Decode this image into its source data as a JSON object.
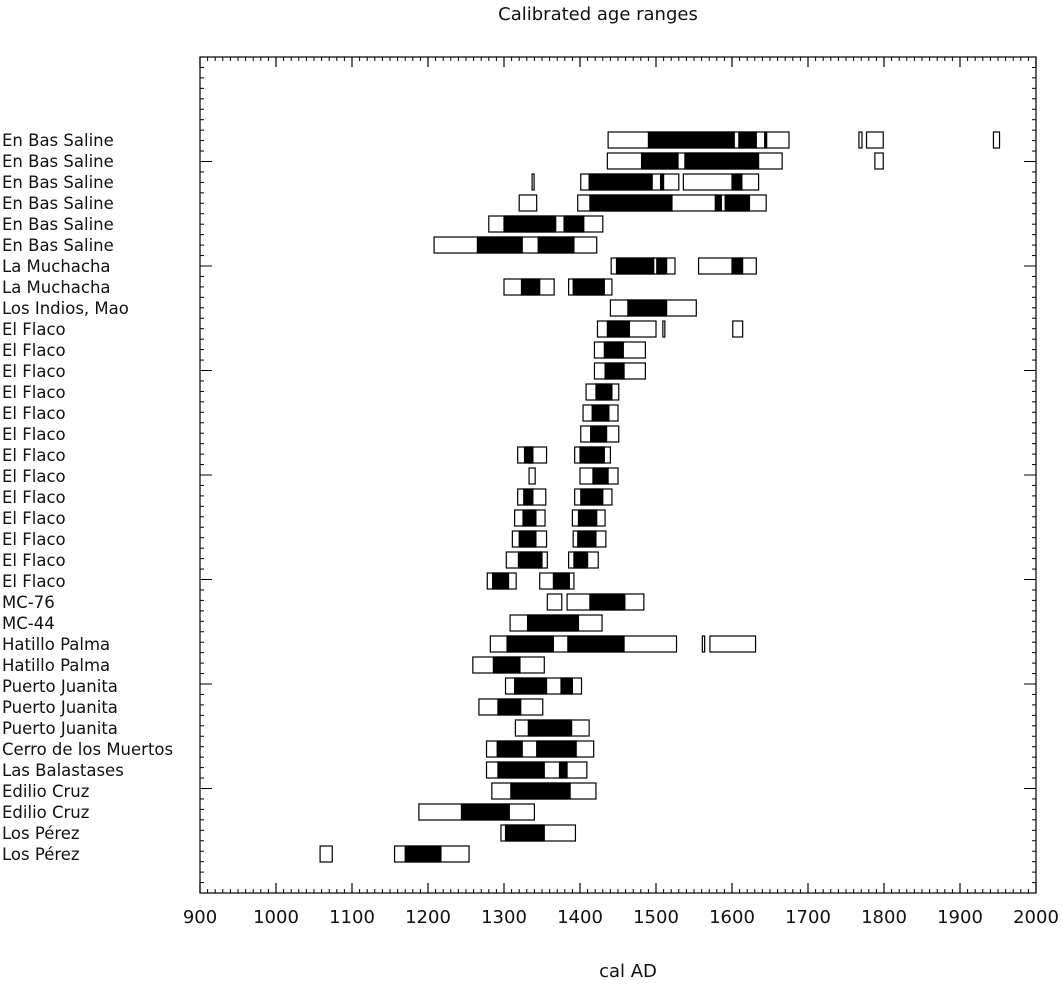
{
  "chart_data": {
    "type": "bar",
    "title": "Calibrated age ranges",
    "xlabel": "cal AD",
    "ylabel": "",
    "xlim": [
      900,
      2000
    ],
    "xticks": [
      900,
      1000,
      1100,
      1200,
      1300,
      1400,
      1500,
      1600,
      1700,
      1800,
      1900,
      2000
    ],
    "grid": false,
    "legend": "none",
    "colors": {
      "sigma1_fill": "#000000",
      "sigma2_fill": "#ffffff",
      "stroke": "#000000"
    },
    "rows": [
      {
        "label": "En Bas Saline",
        "sigma2": [
          [
            1437,
            1675
          ],
          [
            1767,
            1771
          ],
          [
            1777,
            1799
          ],
          [
            1944,
            1952
          ]
        ],
        "sigma1": [
          [
            1490,
            1603
          ],
          [
            1609,
            1632
          ],
          [
            1643,
            1645
          ]
        ]
      },
      {
        "label": "En Bas Saline",
        "sigma2": [
          [
            1436,
            1666
          ],
          [
            1788,
            1799
          ]
        ],
        "sigma1": [
          [
            1481,
            1529
          ],
          [
            1538,
            1635
          ]
        ]
      },
      {
        "label": "En Bas Saline",
        "sigma2": [
          [
            1337,
            1338
          ],
          [
            1401,
            1530
          ],
          [
            1536,
            1635
          ]
        ],
        "sigma1": [
          [
            1412,
            1495
          ],
          [
            1506,
            1510
          ],
          [
            1600,
            1613
          ]
        ]
      },
      {
        "label": "En Bas Saline",
        "sigma2": [
          [
            1320,
            1343
          ],
          [
            1397,
            1645
          ]
        ],
        "sigma1": [
          [
            1413,
            1521
          ],
          [
            1578,
            1586
          ],
          [
            1591,
            1623
          ]
        ]
      },
      {
        "label": "En Bas Saline",
        "sigma2": [
          [
            1280,
            1430
          ]
        ],
        "sigma1": [
          [
            1300,
            1368
          ],
          [
            1379,
            1405
          ]
        ]
      },
      {
        "label": "En Bas Saline",
        "sigma2": [
          [
            1208,
            1422
          ]
        ],
        "sigma1": [
          [
            1265,
            1324
          ],
          [
            1345,
            1392
          ]
        ]
      },
      {
        "label": "La Muchacha",
        "sigma2": [
          [
            1441,
            1525
          ],
          [
            1556,
            1632
          ]
        ],
        "sigma1": [
          [
            1448,
            1497
          ],
          [
            1501,
            1514
          ],
          [
            1600,
            1614
          ]
        ]
      },
      {
        "label": "La Muchacha",
        "sigma2": [
          [
            1300,
            1366
          ],
          [
            1385,
            1442
          ]
        ],
        "sigma1": [
          [
            1323,
            1347
          ],
          [
            1391,
            1432
          ]
        ]
      },
      {
        "label": "Los Indios, Mao",
        "sigma2": [
          [
            1440,
            1553
          ]
        ],
        "sigma1": [
          [
            1463,
            1514
          ]
        ]
      },
      {
        "label": "El Flaco",
        "sigma2": [
          [
            1423,
            1500
          ],
          [
            1509,
            1511
          ],
          [
            1601,
            1614
          ]
        ],
        "sigma1": [
          [
            1436,
            1465
          ]
        ]
      },
      {
        "label": "El Flaco",
        "sigma2": [
          [
            1419,
            1486
          ]
        ],
        "sigma1": [
          [
            1432,
            1457
          ]
        ]
      },
      {
        "label": "El Flaco",
        "sigma2": [
          [
            1419,
            1486
          ]
        ],
        "sigma1": [
          [
            1433,
            1458
          ]
        ]
      },
      {
        "label": "El Flaco",
        "sigma2": [
          [
            1408,
            1451
          ]
        ],
        "sigma1": [
          [
            1421,
            1442
          ]
        ]
      },
      {
        "label": "El Flaco",
        "sigma2": [
          [
            1404,
            1450
          ]
        ],
        "sigma1": [
          [
            1416,
            1438
          ]
        ]
      },
      {
        "label": "El Flaco",
        "sigma2": [
          [
            1401,
            1451
          ]
        ],
        "sigma1": [
          [
            1414,
            1435
          ]
        ]
      },
      {
        "label": "El Flaco",
        "sigma2": [
          [
            1333,
            1337
          ],
          [
            1318,
            1356
          ],
          [
            1393,
            1440
          ]
        ],
        "sigma1": [
          [
            1327,
            1338
          ],
          [
            1400,
            1432
          ]
        ]
      },
      {
        "label": "El Flaco",
        "sigma2": [
          [
            1333,
            1341
          ],
          [
            1400,
            1450
          ]
        ],
        "sigma1": [
          [
            1417,
            1437
          ]
        ]
      },
      {
        "label": "El Flaco",
        "sigma2": [
          [
            1318,
            1355
          ],
          [
            1393,
            1442
          ]
        ],
        "sigma1": [
          [
            1326,
            1338
          ],
          [
            1401,
            1430
          ]
        ]
      },
      {
        "label": "El Flaco",
        "sigma2": [
          [
            1314,
            1354
          ],
          [
            1390,
            1433
          ]
        ],
        "sigma1": [
          [
            1325,
            1342
          ],
          [
            1398,
            1422
          ]
        ]
      },
      {
        "label": "El Flaco",
        "sigma2": [
          [
            1311,
            1356
          ],
          [
            1391,
            1434
          ]
        ],
        "sigma1": [
          [
            1320,
            1342
          ],
          [
            1397,
            1421
          ]
        ]
      },
      {
        "label": "El Flaco",
        "sigma2": [
          [
            1303,
            1357
          ],
          [
            1385,
            1424
          ]
        ],
        "sigma1": [
          [
            1319,
            1350
          ],
          [
            1392,
            1410
          ]
        ]
      },
      {
        "label": "El Flaco",
        "sigma2": [
          [
            1278,
            1316
          ],
          [
            1347,
            1392
          ]
        ],
        "sigma1": [
          [
            1285,
            1306
          ],
          [
            1365,
            1386
          ]
        ]
      },
      {
        "label": "MC-76",
        "sigma2": [
          [
            1357,
            1376
          ],
          [
            1383,
            1484
          ]
        ],
        "sigma1": [
          [
            1413,
            1459
          ]
        ]
      },
      {
        "label": "MC-44",
        "sigma2": [
          [
            1308,
            1429
          ]
        ],
        "sigma1": [
          [
            1331,
            1398
          ]
        ]
      },
      {
        "label": "Hatillo Palma",
        "sigma2": [
          [
            1282,
            1527
          ],
          [
            1561,
            1564
          ],
          [
            1571,
            1631
          ]
        ],
        "sigma1": [
          [
            1304,
            1365
          ],
          [
            1384,
            1458
          ]
        ]
      },
      {
        "label": "Hatillo Palma",
        "sigma2": [
          [
            1259,
            1353
          ]
        ],
        "sigma1": [
          [
            1286,
            1321
          ]
        ]
      },
      {
        "label": "Puerto Juanita",
        "sigma2": [
          [
            1302,
            1402
          ]
        ],
        "sigma1": [
          [
            1314,
            1356
          ],
          [
            1375,
            1390
          ]
        ]
      },
      {
        "label": "Puerto Juanita",
        "sigma2": [
          [
            1267,
            1351
          ]
        ],
        "sigma1": [
          [
            1292,
            1322
          ]
        ]
      },
      {
        "label": "Puerto Juanita",
        "sigma2": [
          [
            1315,
            1412
          ]
        ],
        "sigma1": [
          [
            1332,
            1389
          ]
        ]
      },
      {
        "label": "Cerro de los Muertos",
        "sigma2": [
          [
            1277,
            1418
          ]
        ],
        "sigma1": [
          [
            1291,
            1324
          ],
          [
            1343,
            1395
          ]
        ]
      },
      {
        "label": "Las Balastases",
        "sigma2": [
          [
            1277,
            1409
          ]
        ],
        "sigma1": [
          [
            1292,
            1353
          ],
          [
            1373,
            1383
          ]
        ]
      },
      {
        "label": "Edilio Cruz",
        "sigma2": [
          [
            1284,
            1421
          ]
        ],
        "sigma1": [
          [
            1309,
            1387
          ]
        ]
      },
      {
        "label": "Edilio Cruz",
        "sigma2": [
          [
            1188,
            1340
          ]
        ],
        "sigma1": [
          [
            1244,
            1307
          ]
        ]
      },
      {
        "label": "Los Pérez",
        "sigma2": [
          [
            1296,
            1394
          ]
        ],
        "sigma1": [
          [
            1302,
            1353
          ]
        ]
      },
      {
        "label": "Los Pérez",
        "sigma2": [
          [
            1058,
            1074
          ],
          [
            1156,
            1254
          ]
        ],
        "sigma1": [
          [
            1170,
            1217
          ]
        ]
      }
    ]
  }
}
